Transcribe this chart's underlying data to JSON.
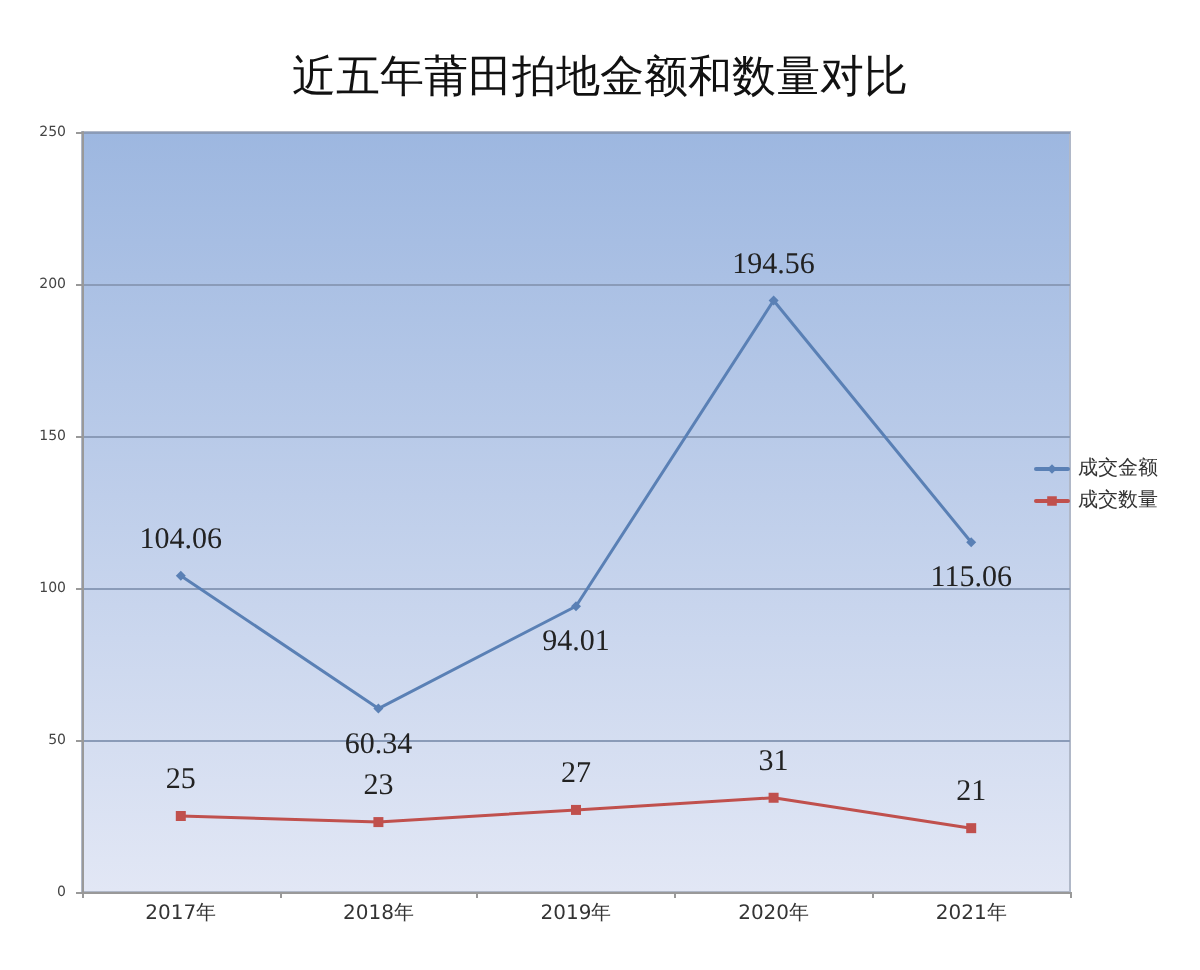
{
  "chart_data": {
    "type": "line",
    "title": "近五年莆田拍地金额和数量对比",
    "categories": [
      "2017年",
      "2018年",
      "2019年",
      "2020年",
      "2021年"
    ],
    "series": [
      {
        "name": "成交金额",
        "color": "#5a80b5",
        "values": [
          104.06,
          60.34,
          94.01,
          194.56,
          115.06
        ],
        "marker": "diamond"
      },
      {
        "name": "成交数量",
        "color": "#c0504d",
        "values": [
          25,
          23,
          27,
          31,
          21
        ],
        "marker": "square"
      }
    ],
    "ylim": [
      0,
      250
    ],
    "yticks": [
      0,
      50,
      100,
      150,
      200,
      250
    ],
    "grid": "y",
    "legend": "right",
    "data_labels": true,
    "line_style": "solid"
  }
}
